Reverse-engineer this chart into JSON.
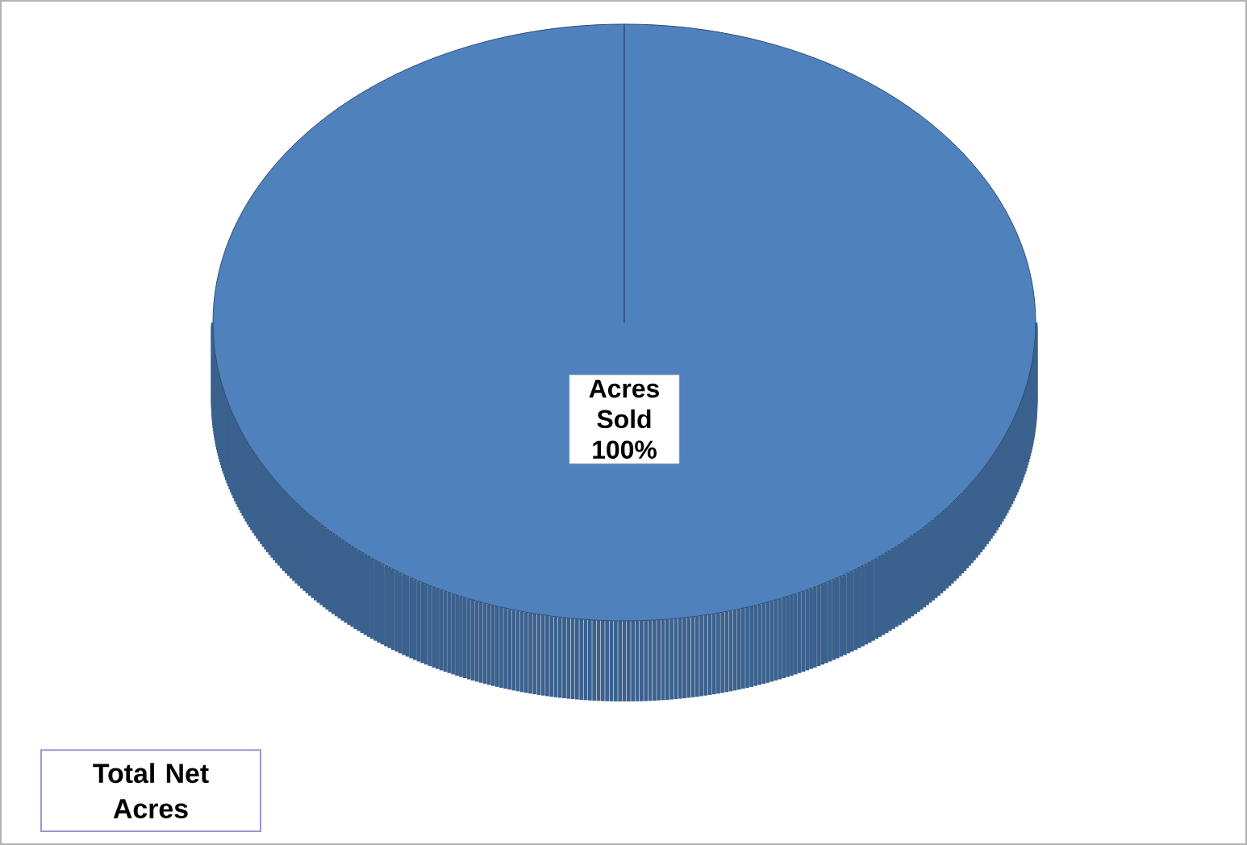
{
  "chart_data": {
    "type": "pie",
    "title": "Total Net Acres",
    "categories": [
      "Acres Sold"
    ],
    "values": [
      100
    ],
    "colors": [
      "#4f81bd"
    ],
    "value_labels": [
      "100%"
    ]
  }
}
